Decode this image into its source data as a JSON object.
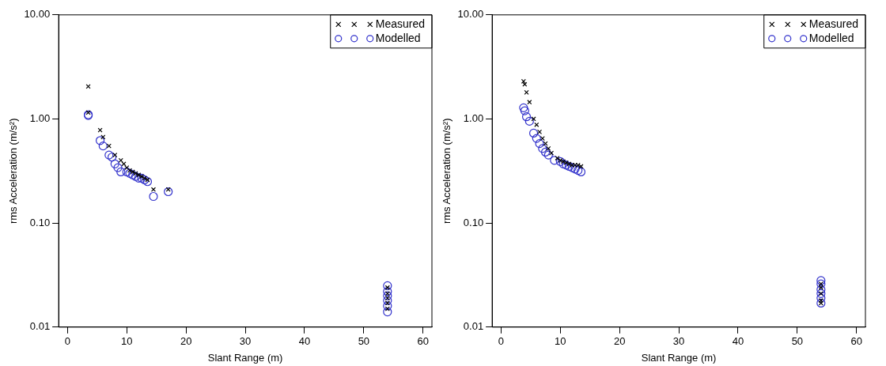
{
  "chart_data": [
    {
      "type": "scatter",
      "xlabel": "Slant Range (m)",
      "ylabel": "rms Acceleration (m/s²)",
      "log": "y",
      "grid": false,
      "legend": "top right",
      "xlim": [
        -1.5,
        61.5
      ],
      "xticks": [
        0,
        10,
        20,
        30,
        40,
        50,
        60
      ],
      "ylim": [
        0.01,
        10
      ],
      "yticks": [
        {
          "value": 0.01,
          "label": "0.01"
        },
        {
          "value": 0.1,
          "label": "0.10"
        },
        {
          "value": 1,
          "label": "1.00"
        },
        {
          "value": 10,
          "label": "10.00"
        }
      ],
      "series": [
        {
          "name": "Measured",
          "color": "#000000",
          "marker": "cross",
          "x": [
            3.5,
            3.5,
            5.5,
            6,
            7,
            8,
            9,
            9.5,
            10,
            10.5,
            11,
            11.5,
            12,
            12.5,
            13,
            13.5,
            14.5,
            17,
            54,
            54,
            54,
            54,
            54
          ],
          "values": [
            2.05,
            1.15,
            0.78,
            0.67,
            0.55,
            0.45,
            0.4,
            0.37,
            0.34,
            0.32,
            0.31,
            0.3,
            0.29,
            0.28,
            0.27,
            0.26,
            0.21,
            0.21,
            0.015,
            0.017,
            0.019,
            0.021,
            0.024
          ]
        },
        {
          "name": "Modelled",
          "color": "#3333cc",
          "marker": "circle",
          "x": [
            3.5,
            3.5,
            5.5,
            6,
            7,
            7.5,
            8,
            8.5,
            9,
            10,
            10.5,
            11,
            11.5,
            12,
            12.5,
            13,
            13.5,
            14.5,
            17,
            54,
            54,
            54,
            54,
            54,
            54
          ],
          "values": [
            1.08,
            1.1,
            0.62,
            0.55,
            0.45,
            0.43,
            0.37,
            0.34,
            0.31,
            0.31,
            0.3,
            0.29,
            0.28,
            0.27,
            0.27,
            0.26,
            0.25,
            0.18,
            0.2,
            0.014,
            0.016,
            0.018,
            0.02,
            0.022,
            0.025
          ]
        }
      ]
    },
    {
      "type": "scatter",
      "xlabel": "Slant Range (m)",
      "ylabel": "rms Acceleration (m/s²)",
      "log": "y",
      "grid": false,
      "legend": "top right",
      "xlim": [
        -1.5,
        61.5
      ],
      "xticks": [
        0,
        10,
        20,
        30,
        40,
        50,
        60
      ],
      "ylim": [
        0.01,
        10
      ],
      "yticks": [
        {
          "value": 0.01,
          "label": "0.01"
        },
        {
          "value": 0.1,
          "label": "0.10"
        },
        {
          "value": 1,
          "label": "1.00"
        },
        {
          "value": 10,
          "label": "10.00"
        }
      ],
      "series": [
        {
          "name": "Measured",
          "color": "#000000",
          "marker": "cross",
          "x": [
            3.8,
            4,
            4.3,
            4.8,
            5.5,
            6,
            6.5,
            7,
            7.5,
            8,
            8.5,
            9.5,
            10,
            10.5,
            11,
            11.5,
            12,
            12.5,
            13,
            13.5,
            54,
            54,
            54,
            54,
            54
          ],
          "values": [
            2.3,
            2.15,
            1.8,
            1.45,
            1.0,
            0.88,
            0.75,
            0.65,
            0.58,
            0.52,
            0.47,
            0.42,
            0.4,
            0.39,
            0.38,
            0.37,
            0.36,
            0.36,
            0.36,
            0.35,
            0.017,
            0.018,
            0.021,
            0.024,
            0.026
          ]
        },
        {
          "name": "Modelled",
          "color": "#3333cc",
          "marker": "circle",
          "x": [
            3.8,
            4,
            4.3,
            4.8,
            5.5,
            6,
            6.5,
            7,
            7.5,
            8,
            9,
            10,
            10.5,
            11,
            11.5,
            12,
            12.5,
            13,
            13.5,
            54,
            54,
            54,
            54,
            54,
            54
          ],
          "values": [
            1.28,
            1.2,
            1.05,
            0.95,
            0.73,
            0.65,
            0.58,
            0.52,
            0.48,
            0.45,
            0.4,
            0.39,
            0.37,
            0.36,
            0.35,
            0.34,
            0.33,
            0.32,
            0.31,
            0.017,
            0.019,
            0.021,
            0.023,
            0.026,
            0.028
          ]
        }
      ]
    }
  ]
}
